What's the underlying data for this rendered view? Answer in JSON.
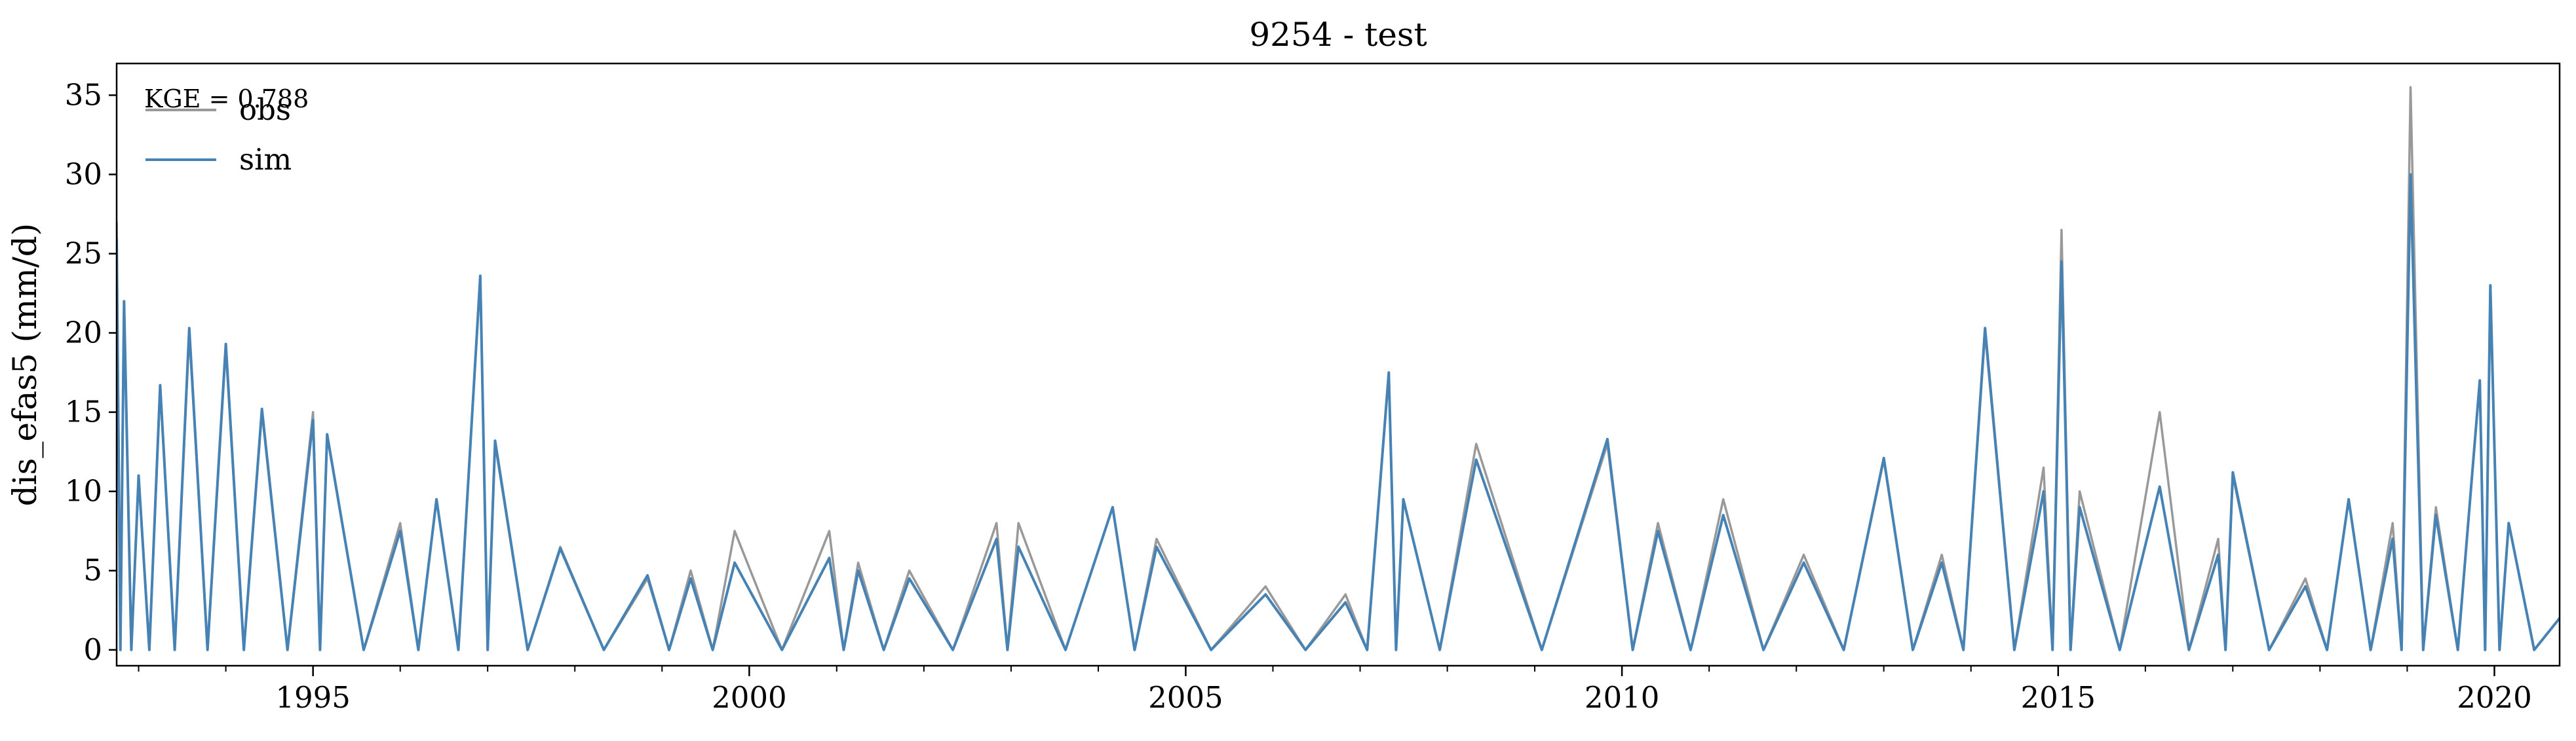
{
  "chart_data": {
    "type": "line",
    "title": "9254 - test",
    "xlabel": "",
    "ylabel": "dis_efas5 (mm/d)",
    "annotation": "KGE = 0.788",
    "x_ticks": [
      "1995",
      "2000",
      "2005",
      "2010",
      "2015",
      "2020"
    ],
    "y_ticks": [
      "0",
      "5",
      "10",
      "15",
      "20",
      "25",
      "30",
      "35"
    ],
    "xlim": [
      "1992-10-01",
      "2020-09-30"
    ],
    "ylim": [
      -1,
      37
    ],
    "grid": false,
    "legend_placement": "top-left",
    "legend": [
      "obs",
      "sim"
    ],
    "series": [
      {
        "name": "obs",
        "color": "#999999",
        "points": [
          [
            "1992-10-01",
            27
          ],
          [
            "1992-11-01",
            22
          ],
          [
            "1993-01-01",
            11
          ],
          [
            "1993-04-01",
            16.5
          ],
          [
            "1993-08-01",
            20
          ],
          [
            "1994-01-01",
            19
          ],
          [
            "1994-06-01",
            15
          ],
          [
            "1995-01-01",
            15
          ],
          [
            "1995-03-01",
            13.5
          ],
          [
            "1996-01-01",
            8
          ],
          [
            "1996-06-01",
            9.5
          ],
          [
            "1996-12-01",
            23.5
          ],
          [
            "1997-02-01",
            13
          ],
          [
            "1997-11-01",
            6.5
          ],
          [
            "1998-11-01",
            4.5
          ],
          [
            "1999-05-01",
            5
          ],
          [
            "1999-11-01",
            7.5
          ],
          [
            "2000-12-01",
            7.5
          ],
          [
            "2001-04-01",
            5.5
          ],
          [
            "2001-11-01",
            5
          ],
          [
            "2002-11-01",
            8
          ],
          [
            "2003-02-01",
            8
          ],
          [
            "2004-03-01",
            9
          ],
          [
            "2004-09-01",
            7
          ],
          [
            "2005-12-01",
            4
          ],
          [
            "2006-11-01",
            3.5
          ],
          [
            "2007-05-01",
            17.5
          ],
          [
            "2007-07-01",
            9.5
          ],
          [
            "2008-05-01",
            13
          ],
          [
            "2009-11-01",
            13
          ],
          [
            "2010-06-01",
            8
          ],
          [
            "2011-03-01",
            9.5
          ],
          [
            "2012-02-01",
            6
          ],
          [
            "2013-01-01",
            12
          ],
          [
            "2013-09-01",
            6
          ],
          [
            "2014-03-01",
            20
          ],
          [
            "2014-11-01",
            11.5
          ],
          [
            "2015-01-15",
            26.5
          ],
          [
            "2015-04-01",
            10
          ],
          [
            "2016-03-01",
            15
          ],
          [
            "2016-11-01",
            7
          ],
          [
            "2017-01-01",
            11
          ],
          [
            "2017-11-01",
            4.5
          ],
          [
            "2018-05-01",
            9.5
          ],
          [
            "2018-11-01",
            8
          ],
          [
            "2019-01-15",
            35.5
          ],
          [
            "2019-05-01",
            9
          ],
          [
            "2019-11-01",
            17
          ],
          [
            "2019-12-15",
            23
          ],
          [
            "2020-03-01",
            8
          ],
          [
            "2020-09-30",
            2
          ]
        ]
      },
      {
        "name": "sim",
        "color": "#4682b4",
        "points": [
          [
            "1992-10-01",
            26
          ],
          [
            "1992-11-01",
            22
          ],
          [
            "1993-01-01",
            11
          ],
          [
            "1993-04-01",
            16.7
          ],
          [
            "1993-08-01",
            20.3
          ],
          [
            "1994-01-01",
            19.3
          ],
          [
            "1994-06-01",
            15.2
          ],
          [
            "1995-01-01",
            14.5
          ],
          [
            "1995-03-01",
            13.6
          ],
          [
            "1996-01-01",
            7.5
          ],
          [
            "1996-06-01",
            9.5
          ],
          [
            "1996-12-01",
            23.6
          ],
          [
            "1997-02-01",
            13.2
          ],
          [
            "1997-11-01",
            6.4
          ],
          [
            "1998-11-01",
            4.7
          ],
          [
            "1999-05-01",
            4.5
          ],
          [
            "1999-11-01",
            5.5
          ],
          [
            "2000-12-01",
            5.8
          ],
          [
            "2001-04-01",
            5
          ],
          [
            "2001-11-01",
            4.5
          ],
          [
            "2002-11-01",
            7
          ],
          [
            "2003-02-01",
            6.5
          ],
          [
            "2004-03-01",
            9
          ],
          [
            "2004-09-01",
            6.5
          ],
          [
            "2005-12-01",
            3.5
          ],
          [
            "2006-11-01",
            3
          ],
          [
            "2007-05-01",
            17.5
          ],
          [
            "2007-07-01",
            9.5
          ],
          [
            "2008-05-01",
            12
          ],
          [
            "2009-11-01",
            13.3
          ],
          [
            "2010-06-01",
            7.5
          ],
          [
            "2011-03-01",
            8.5
          ],
          [
            "2012-02-01",
            5.5
          ],
          [
            "2013-01-01",
            12.1
          ],
          [
            "2013-09-01",
            5.5
          ],
          [
            "2014-03-01",
            20.3
          ],
          [
            "2014-11-01",
            10
          ],
          [
            "2015-01-15",
            24.5
          ],
          [
            "2015-04-01",
            9
          ],
          [
            "2016-03-01",
            10.3
          ],
          [
            "2016-11-01",
            6
          ],
          [
            "2017-01-01",
            11.2
          ],
          [
            "2017-11-01",
            4
          ],
          [
            "2018-05-01",
            9.5
          ],
          [
            "2018-11-01",
            7
          ],
          [
            "2019-01-15",
            30
          ],
          [
            "2019-05-01",
            8.5
          ],
          [
            "2019-11-01",
            17
          ],
          [
            "2019-12-15",
            23
          ],
          [
            "2020-03-01",
            8
          ],
          [
            "2020-09-30",
            2
          ]
        ]
      }
    ]
  }
}
